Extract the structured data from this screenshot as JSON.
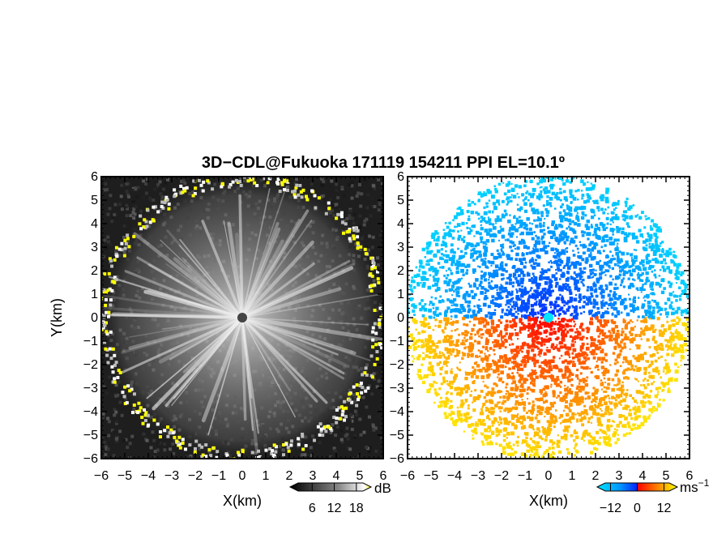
{
  "title": "3D−CDL@Fukuoka 171119 154211 PPI EL=10.1º",
  "chart_data": [
    {
      "type": "heatmap",
      "name": "reflectivity-panel",
      "xlabel": "X(km)",
      "ylabel": "Y(km)",
      "xlim": [
        -6,
        6
      ],
      "ylim": [
        -6,
        6
      ],
      "xticks": [
        "−6",
        "−5",
        "−4",
        "−3",
        "−2",
        "−1",
        "0",
        "1",
        "2",
        "3",
        "4",
        "5",
        "6"
      ],
      "yticks": [
        "−6",
        "−5",
        "−4",
        "−3",
        "−2",
        "−1",
        "0",
        "1",
        "2",
        "3",
        "4",
        "5",
        "6"
      ],
      "colorbar": {
        "unit": "dB",
        "ticks": [
          "6",
          "12",
          "18"
        ],
        "tick_values": [
          6,
          12,
          18
        ],
        "range": [
          0,
          22
        ],
        "colors": [
          "#000000",
          "#2a2a2a",
          "#555555",
          "#808080",
          "#aaaaaa",
          "#d5d5d5",
          "#ffffff",
          "#ffff00"
        ]
      },
      "radar_center": [
        0,
        0
      ],
      "max_range_km": 6
    },
    {
      "type": "heatmap",
      "name": "doppler-velocity-panel",
      "xlabel": "X(km)",
      "xlim": [
        -6,
        6
      ],
      "ylim": [
        -6,
        6
      ],
      "xticks": [
        "−6",
        "−5",
        "−4",
        "−3",
        "−2",
        "−1",
        "0",
        "1",
        "2",
        "3",
        "4",
        "5",
        "6"
      ],
      "yticks": [
        "−6",
        "−5",
        "−4",
        "−3",
        "−2",
        "−1",
        "0",
        "1",
        "2",
        "3",
        "4",
        "5",
        "6"
      ],
      "colorbar": {
        "unit": "ms",
        "unit_exponent": "−1",
        "ticks": [
          "−12",
          "0",
          "12"
        ],
        "tick_values": [
          -12,
          0,
          12
        ],
        "range": [
          -18,
          18
        ],
        "colors": [
          "#00e5ff",
          "#0090ff",
          "#0033ff",
          "#ff0000",
          "#ff7000",
          "#ffd000",
          "#ffff00"
        ]
      },
      "radar_center": [
        0,
        0
      ],
      "max_range_km": 6
    }
  ]
}
